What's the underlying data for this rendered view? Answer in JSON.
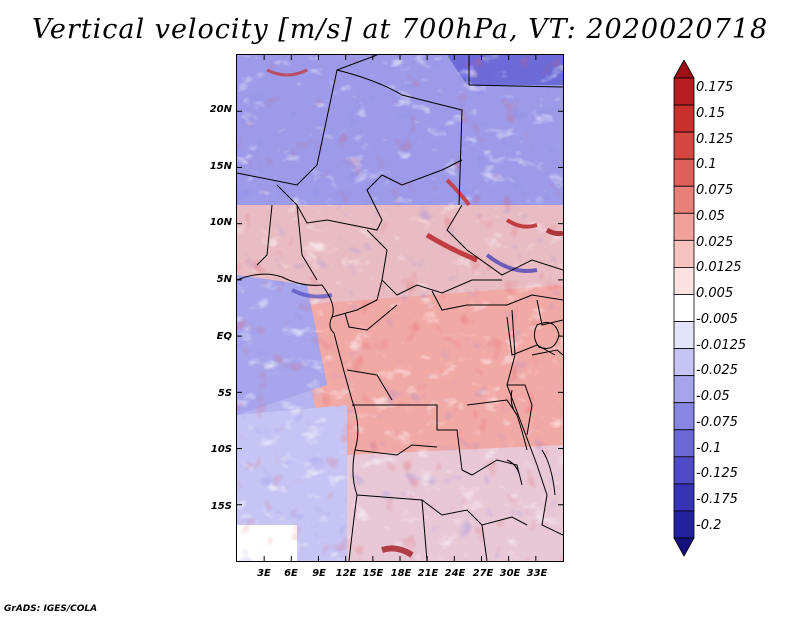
{
  "title": "Vertical velocity [m/s] at 700hPa, VT: 2020020718",
  "credit": "GrADS: IGES/COLA",
  "map": {
    "lon_range": [
      0,
      36
    ],
    "lat_range": [
      -20,
      25
    ],
    "lat_ticks": [
      {
        "value": 20,
        "label": "20N"
      },
      {
        "value": 15,
        "label": "15N"
      },
      {
        "value": 10,
        "label": "10N"
      },
      {
        "value": 5,
        "label": "5N"
      },
      {
        "value": 0,
        "label": "EQ"
      },
      {
        "value": -5,
        "label": "5S"
      },
      {
        "value": -10,
        "label": "10S"
      },
      {
        "value": -15,
        "label": "15S"
      }
    ],
    "lon_ticks": [
      {
        "value": 3,
        "label": "3E"
      },
      {
        "value": 6,
        "label": "6E"
      },
      {
        "value": 9,
        "label": "9E"
      },
      {
        "value": 12,
        "label": "12E"
      },
      {
        "value": 15,
        "label": "15E"
      },
      {
        "value": 18,
        "label": "18E"
      },
      {
        "value": 21,
        "label": "21E"
      },
      {
        "value": 24,
        "label": "24E"
      },
      {
        "value": 27,
        "label": "27E"
      },
      {
        "value": 30,
        "label": "30E"
      },
      {
        "value": 33,
        "label": "33E"
      }
    ]
  },
  "colorbar": {
    "labels": [
      "0.175",
      "0.15",
      "0.125",
      "0.1",
      "0.075",
      "0.05",
      "0.025",
      "0.0125",
      "0.005",
      "-0.005",
      "-0.0125",
      "-0.025",
      "-0.05",
      "-0.075",
      "-0.1",
      "-0.125",
      "-0.175",
      "-0.2"
    ],
    "colors": [
      "#9e0f17",
      "#b51d20",
      "#c8302c",
      "#d64640",
      "#e0615b",
      "#e87f79",
      "#f0a19c",
      "#f6c3c0",
      "#fbe2e1",
      "#ffffff",
      "#e2e2fb",
      "#c6c4f4",
      "#a6a4ec",
      "#8786e2",
      "#6a68d6",
      "#4f4bc8",
      "#3633b4",
      "#22209c",
      "#14117e"
    ]
  }
}
